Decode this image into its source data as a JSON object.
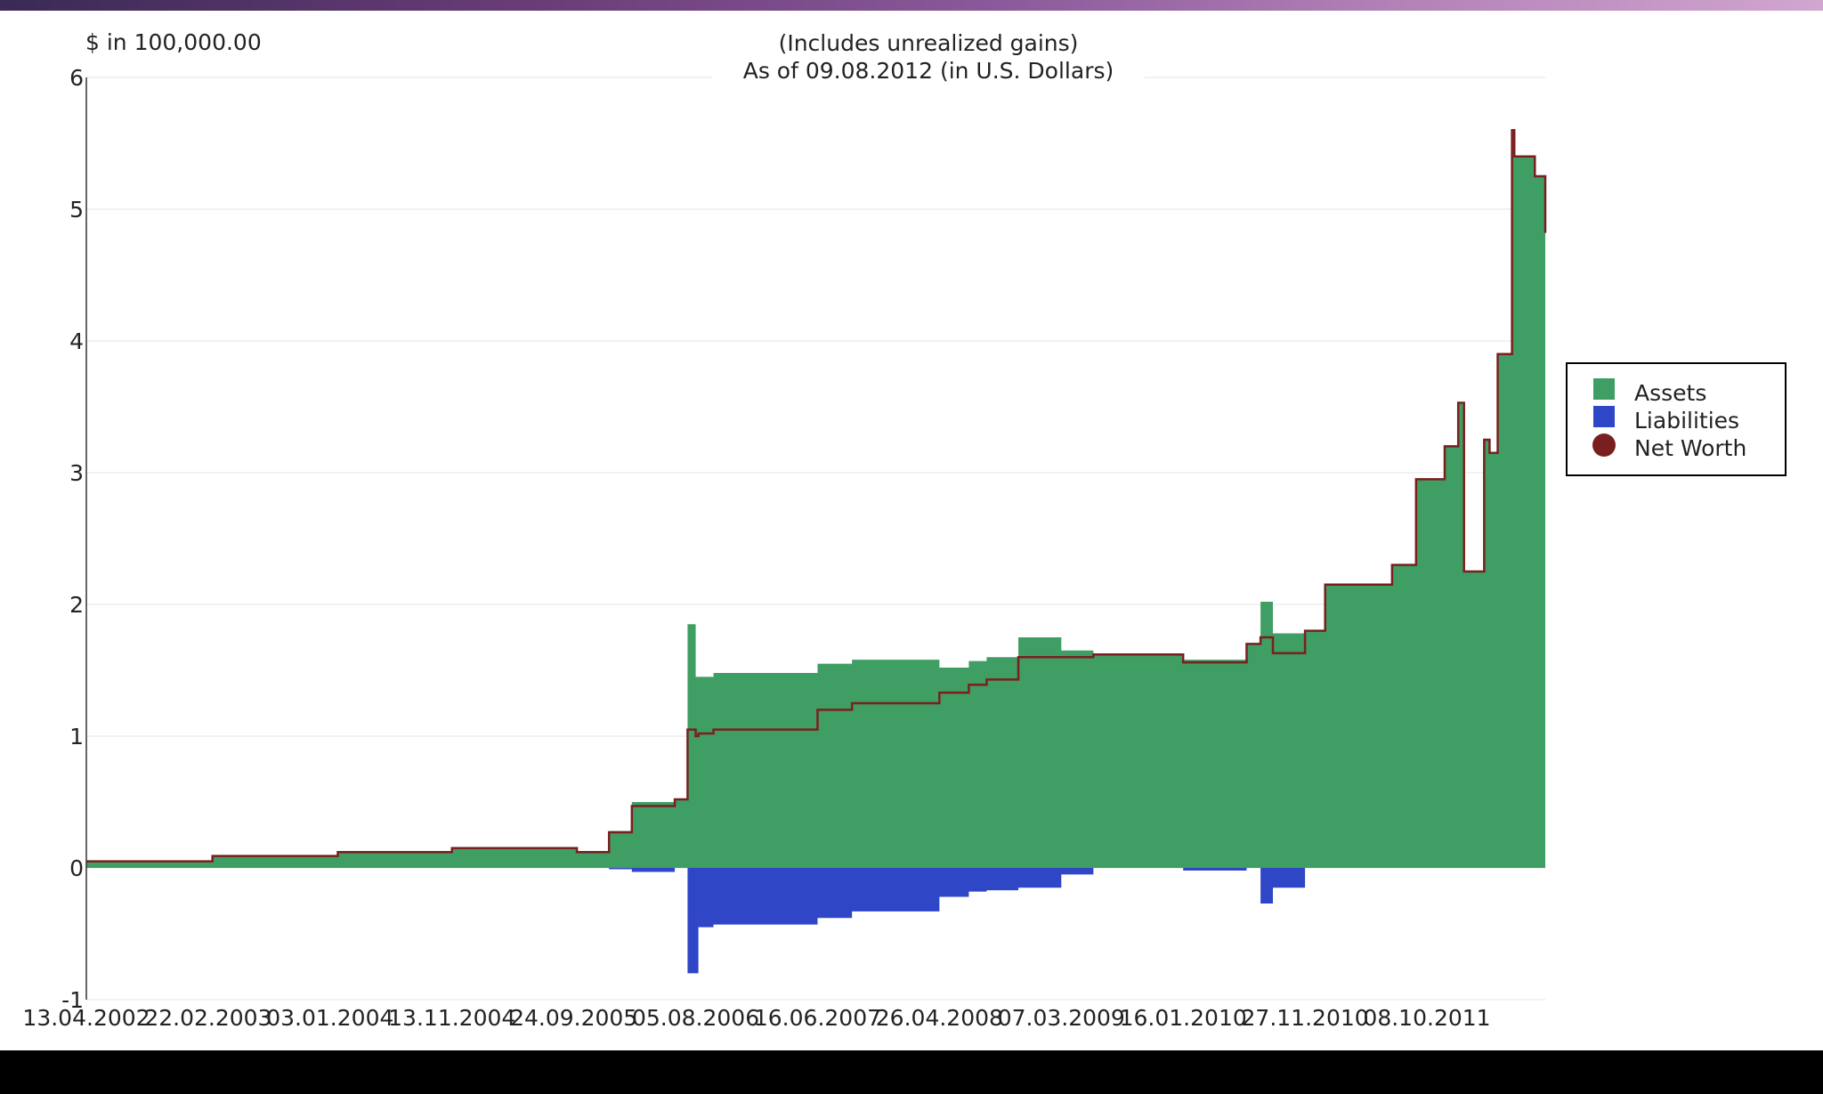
{
  "chart_data": {
    "type": "area",
    "title": "(Includes unrealized gains)",
    "subtitle": "As of 09.08.2012 (in U.S. Dollars)",
    "ylabel": "$ in 100,000.00",
    "ylim": [
      -1,
      6
    ],
    "yticks": [
      "6",
      "5",
      "4",
      "3",
      "2",
      "1",
      "0",
      "-1"
    ],
    "x_tick_labels": [
      "13.04.2002",
      "22.02.2003",
      "03.01.2004",
      "13.11.2004",
      "24.09.2005",
      "05.08.2006",
      "16.06.2007",
      "26.04.2008",
      "07.03.2009",
      "16.01.2010",
      "27.11.2010",
      "08.10.2011"
    ],
    "xlim": [
      "13.04.2002",
      "09.08.2012"
    ],
    "grid": true,
    "legend_position": "right",
    "legend": [
      "Assets",
      "Liabilities",
      "Net Worth"
    ],
    "colors": {
      "assets": "#3f9e63",
      "liabilities": "#2f46c6",
      "net_worth": "#7a1f1f"
    },
    "x": [
      "13.04.2002",
      "05.03.2003",
      "23.01.2004",
      "13.11.2004",
      "02.10.2005",
      "24.12.2005",
      "21.02.2006",
      "12.06.2006",
      "15.07.2006",
      "05.08.2006",
      "12.08.2006",
      "20.09.2006",
      "16.06.2007",
      "13.09.2007",
      "26.04.2008",
      "11.07.2008",
      "26.08.2008",
      "16.11.2008",
      "07.03.2009",
      "29.05.2009",
      "16.01.2010",
      "29.06.2010",
      "04.08.2010",
      "05.09.2010",
      "27.11.2010",
      "18.01.2011",
      "10.07.2011",
      "10.09.2011",
      "23.11.2011",
      "28.12.2011",
      "12.01.2012",
      "04.03.2012",
      "18.03.2012",
      "08.04.2012",
      "15.05.2012",
      "21.05.2012",
      "13.07.2012",
      "09.08.2012"
    ],
    "series": [
      {
        "name": "Assets",
        "values": [
          0.05,
          0.09,
          0.12,
          0.15,
          0.12,
          0.28,
          0.5,
          0.52,
          1.85,
          1.45,
          1.45,
          1.48,
          1.55,
          1.58,
          1.52,
          1.57,
          1.6,
          1.75,
          1.65,
          1.62,
          1.58,
          1.7,
          2.02,
          1.78,
          1.8,
          2.15,
          2.3,
          2.95,
          3.2,
          3.53,
          2.25,
          3.25,
          3.15,
          3.9,
          5.6,
          5.4,
          5.25,
          5.0
        ]
      },
      {
        "name": "Liabilities",
        "values": [
          0,
          0,
          0,
          0,
          0,
          -0.01,
          -0.03,
          0,
          -0.8,
          -0.8,
          -0.45,
          -0.43,
          -0.38,
          -0.33,
          -0.22,
          -0.18,
          -0.17,
          -0.15,
          -0.05,
          0,
          -0.02,
          0,
          -0.27,
          -0.15,
          0,
          0,
          0,
          0,
          0,
          0,
          0,
          0,
          0,
          0,
          0,
          0,
          0,
          -0.18
        ]
      },
      {
        "name": "Net Worth",
        "values": [
          0.05,
          0.09,
          0.12,
          0.15,
          0.12,
          0.27,
          0.47,
          0.52,
          1.05,
          1.0,
          1.02,
          1.05,
          1.2,
          1.25,
          1.33,
          1.39,
          1.43,
          1.6,
          1.6,
          1.62,
          1.56,
          1.7,
          1.75,
          1.63,
          1.8,
          2.15,
          2.3,
          2.95,
          3.2,
          3.53,
          2.25,
          3.25,
          3.15,
          3.9,
          5.6,
          5.4,
          5.25,
          4.82
        ]
      }
    ]
  }
}
